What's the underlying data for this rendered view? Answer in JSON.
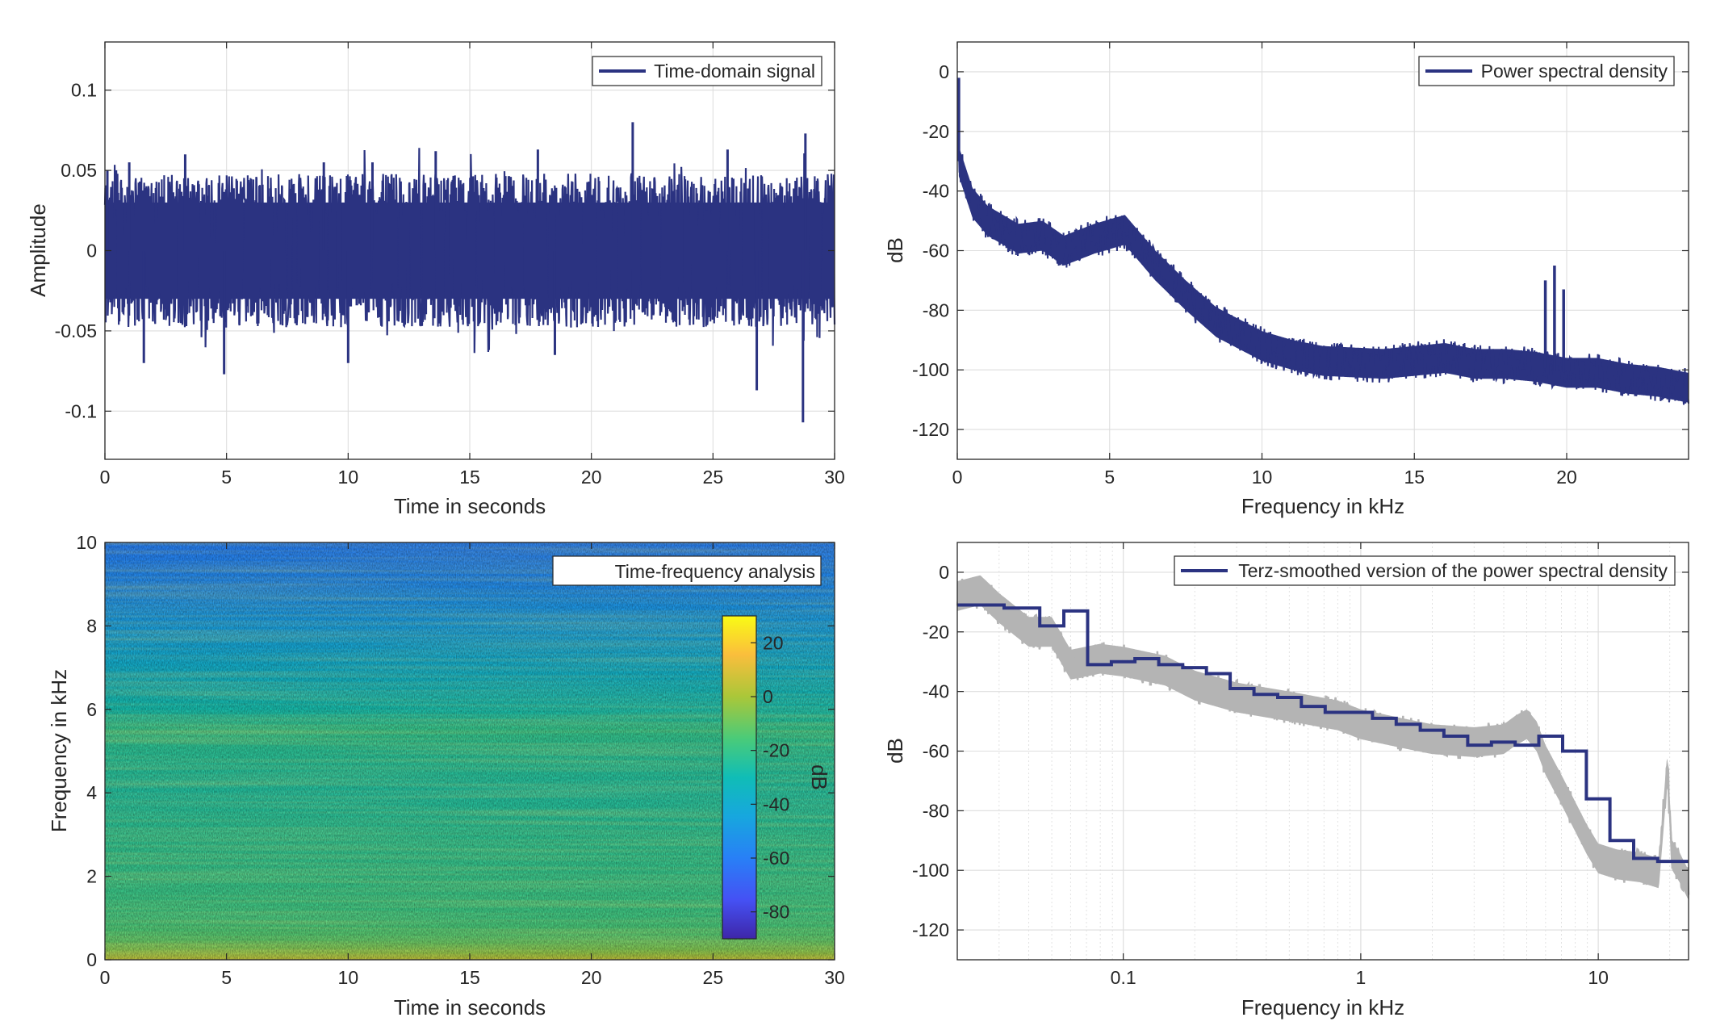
{
  "colors": {
    "line": "#2b3381",
    "axis": "#262626",
    "grid": "#dedede",
    "gray_trace": "#b4b4b4",
    "background": "#ffffff"
  },
  "chart_data": [
    {
      "type": "line",
      "legend": [
        "Time-domain signal"
      ],
      "legend_position": "top-right",
      "xlabel": "Time in seconds",
      "ylabel": "Amplitude",
      "xlim": [
        0,
        30
      ],
      "ylim": [
        -0.13,
        0.13
      ],
      "xticks": [
        0,
        5,
        10,
        15,
        20,
        25,
        30
      ],
      "xtick_labels": [
        "0",
        "5",
        "10",
        "15",
        "20",
        "25",
        "30"
      ],
      "yticks": [
        -0.1,
        -0.05,
        0,
        0.05,
        0.1
      ],
      "ytick_labels": [
        "-0.1",
        "-0.05",
        "0",
        "0.05",
        "0.1"
      ],
      "grid": true,
      "series": [
        {
          "name": "Time-domain signal",
          "envelope": {
            "x": [
              0,
              30
            ],
            "band_min": -0.03,
            "band_max": 0.03
          },
          "peaks_up": [
            [
              0.1,
              0.05
            ],
            [
              1.0,
              0.055
            ],
            [
              3.3,
              0.06
            ],
            [
              9.0,
              0.055
            ],
            [
              11.0,
              0.055
            ],
            [
              13.6,
              0.062
            ],
            [
              17.8,
              0.063
            ],
            [
              21.7,
              0.08
            ],
            [
              25.6,
              0.063
            ],
            [
              28.8,
              0.073
            ]
          ],
          "peaks_down": [
            [
              1.6,
              -0.07
            ],
            [
              4.9,
              -0.077
            ],
            [
              10.0,
              -0.07
            ],
            [
              18.5,
              -0.065
            ],
            [
              26.8,
              -0.087
            ],
            [
              28.7,
              -0.107
            ]
          ]
        }
      ]
    },
    {
      "type": "line",
      "legend": [
        "Power spectral density"
      ],
      "legend_position": "top-right",
      "xlabel": "Frequency in kHz",
      "ylabel": "dB",
      "xlim": [
        0,
        24
      ],
      "ylim": [
        -130,
        10
      ],
      "xticks": [
        0,
        5,
        10,
        15,
        20
      ],
      "xtick_labels": [
        "0",
        "5",
        "10",
        "15",
        "20"
      ],
      "yticks": [
        -120,
        -100,
        -80,
        -60,
        -40,
        -20,
        0
      ],
      "ytick_labels": [
        "-120",
        "-100",
        "-80",
        "-60",
        "-40",
        "-20",
        "0"
      ],
      "grid": true,
      "series": [
        {
          "name": "Power spectral density",
          "x": [
            0.05,
            0.5,
            1,
            2,
            2.8,
            3.5,
            4.5,
            5.5,
            6.5,
            7.5,
            8.5,
            10,
            11,
            12,
            14,
            16,
            17,
            18,
            19,
            20,
            21,
            22,
            23,
            24
          ],
          "y": [
            -30,
            -44,
            -50,
            -56,
            -55,
            -60,
            -56,
            -53,
            -65,
            -75,
            -84,
            -92,
            -95,
            -97,
            -98,
            -96,
            -98,
            -98,
            -99,
            -101,
            -101,
            -103,
            -104,
            -106
          ],
          "band_width_db": 5,
          "spikes": [
            [
              0.05,
              -2
            ],
            [
              19.3,
              -70
            ],
            [
              19.6,
              -65
            ],
            [
              19.9,
              -73
            ]
          ]
        }
      ]
    },
    {
      "type": "heatmap",
      "legend": [
        "Time-frequency analysis"
      ],
      "legend_position": "top-right",
      "xlabel": "Time in seconds",
      "ylabel": "Frequency in kHz",
      "xlim": [
        0,
        30
      ],
      "ylim": [
        0,
        10
      ],
      "xticks": [
        0,
        5,
        10,
        15,
        20,
        25,
        30
      ],
      "xtick_labels": [
        "0",
        "5",
        "10",
        "15",
        "20",
        "25",
        "30"
      ],
      "yticks": [
        0,
        2,
        4,
        6,
        8,
        10
      ],
      "ytick_labels": [
        "0",
        "2",
        "4",
        "6",
        "8",
        "10"
      ],
      "colorbar": {
        "label": "dB",
        "range": [
          -90,
          30
        ],
        "ticks": [
          -80,
          -60,
          -40,
          -20,
          0,
          20
        ],
        "tick_labels": [
          "-80",
          "-60",
          "-40",
          "-20",
          "0",
          "20"
        ]
      },
      "frequency_profile_db": {
        "f_khz": [
          0,
          0.2,
          0.5,
          1,
          2,
          3,
          4,
          5,
          5.5,
          6,
          7,
          8,
          9,
          10
        ],
        "db": [
          5,
          -5,
          -13,
          -18,
          -20,
          -22,
          -25,
          -23,
          -20,
          -28,
          -38,
          -47,
          -55,
          -60
        ]
      }
    },
    {
      "type": "line",
      "legend": [
        "Terz-smoothed version of the power spectral density"
      ],
      "legend_position": "top-right",
      "xlabel": "Frequency in kHz",
      "ylabel": "dB",
      "xscale": "log",
      "xlim": [
        0.02,
        24
      ],
      "ylim": [
        -130,
        10
      ],
      "xticks": [
        0.1,
        1,
        10
      ],
      "xtick_labels": [
        "0.1",
        "1",
        "10"
      ],
      "yticks": [
        -120,
        -100,
        -80,
        -60,
        -40,
        -20,
        0
      ],
      "ytick_labels": [
        "-120",
        "-100",
        "-80",
        "-60",
        "-40",
        "-20",
        "0"
      ],
      "grid": true,
      "series": [
        {
          "name": "Terz-smoothed version of the power spectral density",
          "step_edges": [
            0.02,
            0.0315,
            0.0445,
            0.0562,
            0.0708,
            0.0891,
            0.112,
            0.141,
            0.178,
            0.224,
            0.282,
            0.355,
            0.447,
            0.562,
            0.708,
            0.891,
            1.12,
            1.41,
            1.78,
            2.24,
            2.82,
            3.55,
            4.47,
            5.62,
            7.08,
            8.91,
            11.2,
            14.1,
            17.8,
            24
          ],
          "step_values": [
            -11,
            -12,
            -18,
            -13,
            -31,
            -30,
            -29,
            -31,
            -32,
            -34,
            -39,
            -41,
            -42,
            -45,
            -47,
            -47,
            -49,
            -51,
            -53,
            -55,
            -58,
            -57,
            -58,
            -55,
            -60,
            -76,
            -90,
            -96,
            -97,
            -97
          ]
        },
        {
          "name": "raw power spectral density",
          "x": [
            0.02,
            0.025,
            0.03,
            0.04,
            0.05,
            0.06,
            0.08,
            0.1,
            0.15,
            0.2,
            0.3,
            0.5,
            0.8,
            1,
            1.5,
            2,
            3,
            4,
            4.5,
            5,
            5.5,
            6,
            7,
            8,
            9,
            10,
            12,
            15,
            18,
            19.5,
            20.5,
            22,
            24
          ],
          "y": [
            -8,
            -6,
            -12,
            -20,
            -20,
            -31,
            -29,
            -30,
            -33,
            -38,
            -42,
            -45,
            -48,
            -51,
            -54,
            -56,
            -57,
            -56,
            -53,
            -51,
            -55,
            -63,
            -73,
            -82,
            -90,
            -96,
            -98,
            -99,
            -101,
            -66,
            -95,
            -99,
            -105
          ],
          "band_width_db": 5
        }
      ]
    }
  ]
}
